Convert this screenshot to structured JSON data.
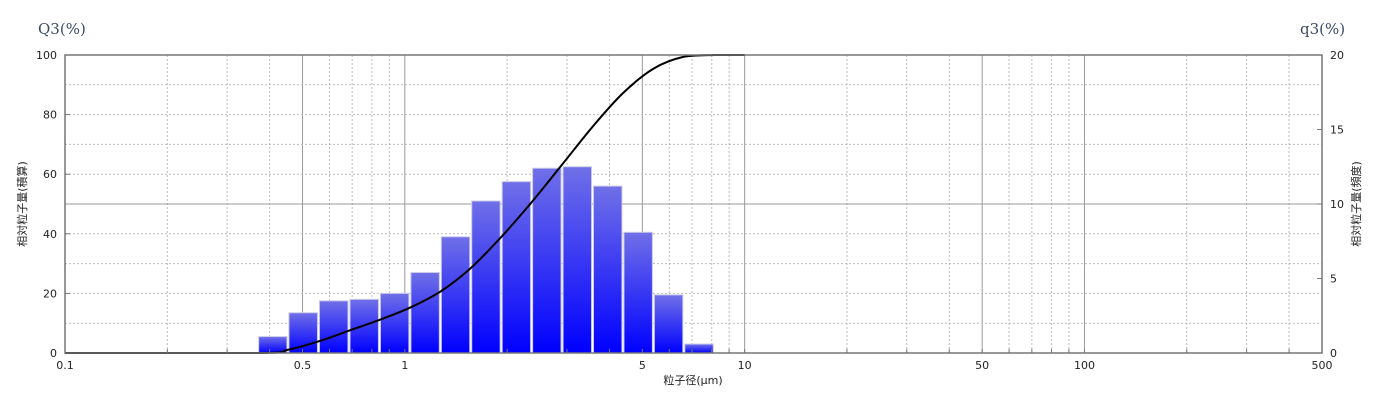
{
  "chart_data": {
    "type": "bar",
    "left_axis_title": "Q3(%)",
    "right_axis_title": "q3(%)",
    "ylabel_left": "相対粒子量(積算)",
    "ylabel_right": "相対粒子量(頻度)",
    "xlabel": "粒子径(μm)",
    "x_scale": "log",
    "xlim": [
      0.1,
      500
    ],
    "ylim_left": [
      0,
      100
    ],
    "ylim_right": [
      0,
      20
    ],
    "x_tick_labels": [
      "0.1",
      "0.5",
      "1",
      "5",
      "10",
      "50",
      "100",
      "500"
    ],
    "y_left_tick_labels": [
      "0",
      "20",
      "40",
      "60",
      "80",
      "100"
    ],
    "y_right_tick_labels": [
      "0",
      "5",
      "10",
      "15",
      "20"
    ],
    "grid": true,
    "bin_edges": [
      0.369,
      0.453,
      0.557,
      0.685,
      0.842,
      1.035,
      1.272,
      1.563,
      1.921,
      2.361,
      2.902,
      3.567,
      4.384,
      5.388,
      6.622,
      8.139
    ],
    "series": [
      {
        "axis": "right",
        "kind": "bar",
        "values": [
          1.1,
          2.7,
          3.5,
          3.6,
          4.0,
          5.4,
          7.8,
          10.2,
          11.5,
          12.4,
          12.5,
          11.2,
          8.1,
          3.9,
          0.6
        ]
      },
      {
        "axis": "left",
        "kind": "line",
        "x": [
          0.1,
          0.369,
          0.453,
          0.557,
          0.685,
          0.842,
          1.035,
          1.272,
          1.563,
          1.921,
          2.361,
          2.902,
          3.567,
          4.384,
          5.388,
          6.622,
          8.139,
          10
        ],
        "values": [
          0,
          0,
          1.1,
          3.9,
          7.5,
          11.1,
          15.2,
          20.6,
          28.5,
          38.9,
          50.6,
          63.2,
          75.9,
          87.2,
          95.4,
          99.4,
          100,
          100
        ]
      }
    ],
    "colors": {
      "bar_top": "#7070e8",
      "bar_bottom": "#0000ff",
      "bar_edge": "#c8c8e8",
      "line": "#000000"
    }
  }
}
